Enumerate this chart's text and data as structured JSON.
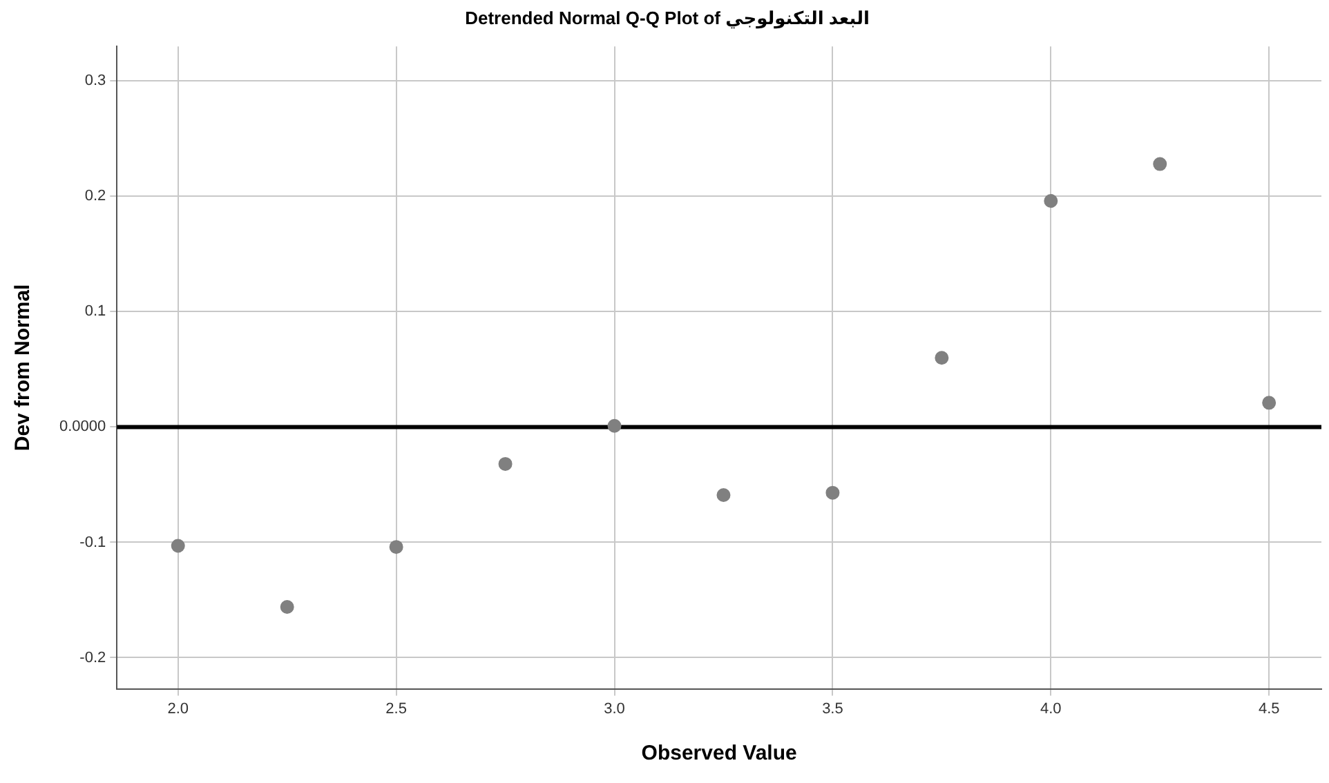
{
  "chart_data": {
    "type": "scatter",
    "title": "Detrended Normal Q-Q Plot of البعد التكنولوجي",
    "xlabel": "Observed Value",
    "ylabel": "Dev from Normal",
    "x": [
      2.0,
      2.25,
      2.5,
      2.75,
      3.0,
      3.25,
      3.5,
      3.75,
      4.0,
      4.25,
      4.5
    ],
    "series": [
      {
        "color": "#808080",
        "values": [
          -0.103,
          -0.156,
          -0.104,
          -0.032,
          0.001,
          -0.059,
          -0.057,
          0.06,
          0.196,
          0.228,
          0.021
        ]
      }
    ],
    "xlim": [
      1.86,
      4.62
    ],
    "xticks": [
      {
        "value": 2.0,
        "label": "2.0"
      },
      2.5,
      {
        "value": 3.0,
        "label": "3.0"
      },
      3.5,
      {
        "value": 4.0,
        "label": "4.0"
      },
      4.5
    ],
    "ylim": [
      -0.227,
      0.33
    ],
    "yticks": [
      -0.2,
      -0.1,
      {
        "value": 0,
        "label": "0.0000"
      },
      0.1,
      0.2,
      0.3
    ],
    "ref_lines": [
      {
        "axis": "y",
        "value": 0,
        "color": "#000000"
      }
    ],
    "grid": true,
    "legend": false,
    "marker": "circle"
  }
}
